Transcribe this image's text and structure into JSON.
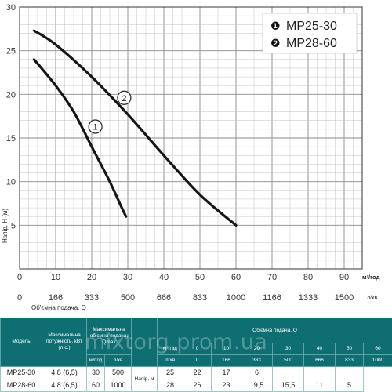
{
  "chart_data": {
    "type": "line",
    "xlabel": "м³/год",
    "xlabel2": "л/хв",
    "xlabel_caption": "Об'ємна подача, Q",
    "ylabel": "Напір, Н (м)",
    "xlim": [
      0,
      95
    ],
    "ylim": [
      0,
      30
    ],
    "x_ticks": [
      0,
      10,
      20,
      30,
      40,
      50,
      60,
      70,
      80,
      90
    ],
    "y_ticks": [
      5,
      10,
      15,
      20,
      25,
      30
    ],
    "x2_ticks": [
      "0",
      "166",
      "333",
      "500",
      "666",
      "833",
      "1000",
      "1166",
      "1333",
      "1500"
    ],
    "grid": true,
    "legend": {
      "position": "top-right",
      "entries": [
        {
          "marker": "❶",
          "name": "MP25-30"
        },
        {
          "marker": "❷",
          "name": "MP28-60"
        }
      ]
    },
    "series": [
      {
        "name": "MP25-30",
        "label": "1",
        "label_at": [
          21,
          16.3
        ],
        "points": [
          [
            4,
            24
          ],
          [
            10,
            21
          ],
          [
            15,
            18
          ],
          [
            20,
            14
          ],
          [
            25,
            10
          ],
          [
            28,
            7.3
          ],
          [
            29.5,
            6
          ]
        ]
      },
      {
        "name": "MP28-60",
        "label": "2",
        "label_at": [
          29,
          19.6
        ],
        "points": [
          [
            4,
            27.3
          ],
          [
            10,
            25.7
          ],
          [
            20,
            22
          ],
          [
            30,
            17.7
          ],
          [
            40,
            13
          ],
          [
            50,
            8.5
          ],
          [
            60,
            5
          ]
        ]
      }
    ]
  },
  "watermark": "mixtorg.prom.ua",
  "table": {
    "headers": {
      "model": "Модель",
      "power": "Максимальна потужність, кВт (л.с.)",
      "maxflow": "Максимальна об'ємна подача, Qmax",
      "flow": "Об'ємна подача, Q",
      "unit_m3": "м³/год",
      "unit_l": "л/хв",
      "head_label": "Напір, м"
    },
    "maxflow_units": [
      "м³/год",
      "л/хв"
    ],
    "flow_m3": [
      "0",
      "10",
      "20",
      "30",
      "40",
      "50",
      "60"
    ],
    "flow_l": [
      "0",
      "166",
      "333",
      "500",
      "666",
      "833",
      "1000"
    ],
    "rows": [
      {
        "model": "MP25-30",
        "power": "4,8 (6,5)",
        "qmax_m3": "30",
        "qmax_l": "500",
        "heads": [
          "25",
          "22",
          "17",
          "6",
          "",
          "",
          ""
        ]
      },
      {
        "model": "MP28-60",
        "power": "4,8 (6,5)",
        "qmax_m3": "60",
        "qmax_l": "1000",
        "heads": [
          "28",
          "26",
          "23",
          "19,5",
          "15,5",
          "11",
          "5"
        ]
      }
    ]
  }
}
